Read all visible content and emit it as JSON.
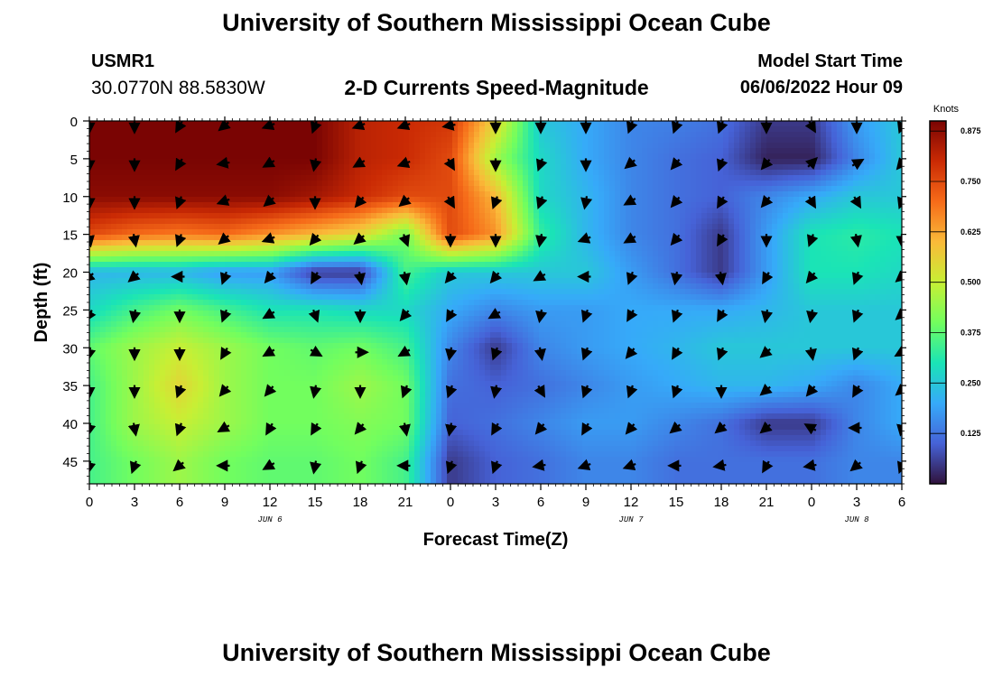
{
  "page": {
    "title": "University of Southern Mississippi Ocean Cube",
    "bottom_title": "University of Southern Mississippi Ocean Cube",
    "station_id": "USMR1",
    "station_coords": "30.0770N  88.5830W",
    "model_start_label": "Model Start Time",
    "model_start_value": "06/06/2022 Hour 09"
  },
  "chart_data": {
    "type": "heatmap",
    "title": "2-D Currents Speed-Magnitude",
    "xlabel": "Forecast Time(Z)",
    "ylabel": "Depth (ft)",
    "x_ticks": [
      "0",
      "3",
      "6",
      "9",
      "12",
      "15",
      "18",
      "21",
      "0",
      "3",
      "6",
      "9",
      "12",
      "15",
      "18",
      "21",
      "0",
      "3",
      "6"
    ],
    "x_day_labels": [
      {
        "label": "JUN 6",
        "tick_index": 4
      },
      {
        "label": "JUN 7",
        "tick_index": 12
      },
      {
        "label": "JUN 8",
        "tick_index": 17
      }
    ],
    "y_ticks": [
      0,
      5,
      10,
      15,
      20,
      25,
      30,
      35,
      40,
      45
    ],
    "ylim": [
      0,
      48
    ],
    "y_inverted": true,
    "colorbar": {
      "unit": "Knots",
      "range": [
        0.0,
        0.9
      ],
      "ticks": [
        "0.125",
        "0.250",
        "0.375",
        "0.500",
        "0.625",
        "0.750",
        "0.875"
      ],
      "tick_values": [
        0.125,
        0.25,
        0.375,
        0.5,
        0.625,
        0.75,
        0.875
      ],
      "colormap": [
        "#30123b",
        "#4662d7",
        "#36aaf9",
        "#1ae4b6",
        "#72fe5e",
        "#c8ef34",
        "#faba39",
        "#f66b19",
        "#ca2a04",
        "#7a0403"
      ]
    },
    "vector_depths_ft": [
      0,
      5,
      10,
      15,
      20,
      25,
      30,
      35,
      40,
      45
    ],
    "speed_grid_knots": [
      [
        0.9,
        0.9,
        0.9,
        0.9,
        0.9,
        0.9,
        0.82,
        0.8,
        0.78,
        0.55,
        0.25,
        0.2,
        0.15,
        0.14,
        0.12,
        0.05,
        0.05,
        0.18,
        0.25
      ],
      [
        0.9,
        0.9,
        0.9,
        0.9,
        0.9,
        0.9,
        0.82,
        0.8,
        0.75,
        0.45,
        0.28,
        0.2,
        0.15,
        0.12,
        0.1,
        0.02,
        0.02,
        0.15,
        0.25
      ],
      [
        0.88,
        0.88,
        0.88,
        0.88,
        0.88,
        0.85,
        0.8,
        0.75,
        0.75,
        0.6,
        0.28,
        0.22,
        0.15,
        0.12,
        0.1,
        0.15,
        0.2,
        0.25,
        0.25
      ],
      [
        0.75,
        0.7,
        0.68,
        0.7,
        0.65,
        0.6,
        0.55,
        0.4,
        0.75,
        0.65,
        0.33,
        0.22,
        0.15,
        0.12,
        0.05,
        0.18,
        0.3,
        0.32,
        0.3
      ],
      [
        0.22,
        0.22,
        0.22,
        0.18,
        0.18,
        0.05,
        0.05,
        0.35,
        0.25,
        0.25,
        0.25,
        0.25,
        0.18,
        0.12,
        0.05,
        0.18,
        0.3,
        0.3,
        0.28
      ],
      [
        0.28,
        0.35,
        0.4,
        0.35,
        0.3,
        0.3,
        0.28,
        0.28,
        0.2,
        0.15,
        0.18,
        0.18,
        0.2,
        0.2,
        0.2,
        0.22,
        0.25,
        0.25,
        0.25
      ],
      [
        0.38,
        0.45,
        0.5,
        0.45,
        0.4,
        0.38,
        0.4,
        0.35,
        0.15,
        0.05,
        0.15,
        0.18,
        0.2,
        0.22,
        0.25,
        0.25,
        0.25,
        0.25,
        0.25
      ],
      [
        0.35,
        0.45,
        0.55,
        0.45,
        0.4,
        0.4,
        0.45,
        0.4,
        0.12,
        0.1,
        0.12,
        0.15,
        0.18,
        0.2,
        0.22,
        0.22,
        0.2,
        0.15,
        0.2
      ],
      [
        0.35,
        0.45,
        0.5,
        0.45,
        0.4,
        0.4,
        0.42,
        0.4,
        0.1,
        0.12,
        0.15,
        0.18,
        0.18,
        0.15,
        0.12,
        0.05,
        0.05,
        0.15,
        0.2
      ],
      [
        0.35,
        0.4,
        0.45,
        0.4,
        0.38,
        0.38,
        0.4,
        0.35,
        0.05,
        0.1,
        0.12,
        0.15,
        0.15,
        0.12,
        0.12,
        0.12,
        0.12,
        0.15,
        0.15
      ]
    ],
    "direction_grid_deg": [
      [
        180,
        180,
        210,
        230,
        250,
        200,
        250,
        250,
        260,
        180,
        180,
        180,
        200,
        200,
        200,
        180,
        150,
        180,
        200
      ],
      [
        180,
        180,
        210,
        260,
        240,
        190,
        240,
        250,
        150,
        180,
        200,
        180,
        230,
        220,
        200,
        220,
        45,
        60,
        220
      ],
      [
        180,
        180,
        200,
        250,
        230,
        180,
        220,
        230,
        150,
        200,
        200,
        190,
        240,
        220,
        210,
        220,
        150,
        150,
        200
      ],
      [
        170,
        170,
        200,
        230,
        250,
        220,
        230,
        160,
        180,
        180,
        190,
        250,
        240,
        220,
        210,
        180,
        200,
        170,
        180
      ],
      [
        230,
        230,
        270,
        200,
        220,
        210,
        170,
        170,
        220,
        220,
        240,
        270,
        200,
        190,
        170,
        210,
        220,
        200,
        230
      ],
      [
        210,
        190,
        180,
        200,
        240,
        160,
        180,
        220,
        210,
        240,
        190,
        200,
        210,
        200,
        210,
        190,
        190,
        200,
        230
      ],
      [
        190,
        180,
        180,
        210,
        240,
        120,
        90,
        240,
        190,
        200,
        170,
        200,
        220,
        210,
        200,
        230,
        170,
        200,
        240
      ],
      [
        180,
        180,
        200,
        220,
        220,
        190,
        180,
        200,
        200,
        190,
        150,
        200,
        200,
        200,
        180,
        230,
        220,
        210,
        230
      ],
      [
        190,
        170,
        200,
        240,
        210,
        210,
        220,
        170,
        190,
        210,
        220,
        210,
        220,
        230,
        230,
        230,
        300,
        270,
        190
      ],
      [
        190,
        200,
        230,
        270,
        240,
        190,
        200,
        270,
        200,
        200,
        260,
        250,
        250,
        270,
        260,
        210,
        260,
        230,
        200
      ]
    ]
  }
}
